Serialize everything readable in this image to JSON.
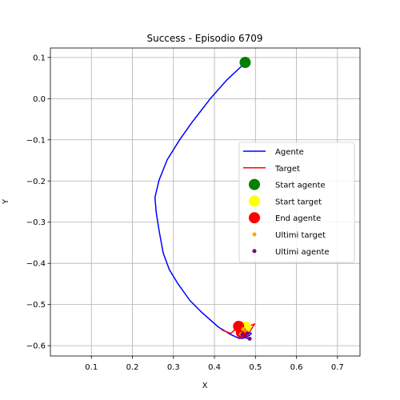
{
  "chart_data": {
    "type": "line",
    "title": "Success - Episodio 6709",
    "xlabel": "X",
    "ylabel": "Y",
    "xlim": [
      0.0,
      0.755
    ],
    "ylim": [
      -0.625,
      0.123
    ],
    "xticks": [
      0.1,
      0.2,
      0.3,
      0.4,
      0.5,
      0.6,
      0.7
    ],
    "yticks": [
      -0.6,
      -0.5,
      -0.4,
      -0.3,
      -0.2,
      -0.1,
      0.0,
      0.1
    ],
    "xtick_labels": [
      "0.1",
      "0.2",
      "0.3",
      "0.4",
      "0.5",
      "0.6",
      "0.7"
    ],
    "ytick_labels": [
      "−0.6",
      "−0.5",
      "−0.4",
      "−0.3",
      "−0.2",
      "−0.1",
      "0.0",
      "0.1"
    ],
    "grid": true,
    "legend_position": "center-right",
    "series": [
      {
        "name": "Agente",
        "kind": "line",
        "color": "#0000ff",
        "points": [
          [
            0.475,
            0.087
          ],
          [
            0.43,
            0.045
          ],
          [
            0.39,
            0.0
          ],
          [
            0.345,
            -0.058
          ],
          [
            0.315,
            -0.1
          ],
          [
            0.285,
            -0.148
          ],
          [
            0.265,
            -0.198
          ],
          [
            0.255,
            -0.24
          ],
          [
            0.258,
            -0.275
          ],
          [
            0.265,
            -0.32
          ],
          [
            0.275,
            -0.375
          ],
          [
            0.29,
            -0.415
          ],
          [
            0.31,
            -0.448
          ],
          [
            0.34,
            -0.49
          ],
          [
            0.37,
            -0.52
          ],
          [
            0.41,
            -0.555
          ],
          [
            0.44,
            -0.573
          ],
          [
            0.46,
            -0.582
          ],
          [
            0.47,
            -0.582
          ],
          [
            0.485,
            -0.575
          ],
          [
            0.49,
            -0.57
          ],
          [
            0.48,
            -0.567
          ],
          [
            0.475,
            -0.575
          ],
          [
            0.468,
            -0.578
          ],
          [
            0.48,
            -0.582
          ],
          [
            0.486,
            -0.58
          ]
        ]
      },
      {
        "name": "Target",
        "kind": "line",
        "color": "#ff0000",
        "points": [
          [
            0.418,
            -0.562
          ],
          [
            0.44,
            -0.57
          ],
          [
            0.455,
            -0.557
          ],
          [
            0.462,
            -0.552
          ],
          [
            0.473,
            -0.563
          ],
          [
            0.483,
            -0.572
          ],
          [
            0.49,
            -0.56
          ],
          [
            0.498,
            -0.547
          ],
          [
            0.485,
            -0.552
          ],
          [
            0.475,
            -0.562
          ],
          [
            0.466,
            -0.572
          ],
          [
            0.46,
            -0.566
          ],
          [
            0.465,
            -0.558
          ],
          [
            0.472,
            -0.572
          ],
          [
            0.478,
            -0.57
          ]
        ]
      },
      {
        "name": "Start agente",
        "kind": "marker",
        "color": "#008000",
        "size": 7,
        "points": [
          [
            0.475,
            0.088
          ]
        ]
      },
      {
        "name": "Start target",
        "kind": "marker",
        "color": "#ffff00",
        "size": 7,
        "points": [
          [
            0.476,
            -0.555
          ]
        ]
      },
      {
        "name": "End agente",
        "kind": "marker",
        "color": "#ff0000",
        "size": 7,
        "points": [
          [
            0.459,
            -0.553
          ],
          [
            0.466,
            -0.568
          ]
        ]
      },
      {
        "name": "Ultimi target",
        "kind": "marker",
        "color": "#ffa500",
        "size": 2.5,
        "points": [
          [
            0.47,
            -0.56
          ],
          [
            0.478,
            -0.566
          ],
          [
            0.465,
            -0.572
          ]
        ]
      },
      {
        "name": "Ultimi agente",
        "kind": "marker",
        "color": "#800080",
        "size": 2.5,
        "points": [
          [
            0.468,
            -0.573
          ],
          [
            0.476,
            -0.578
          ],
          [
            0.486,
            -0.583
          ],
          [
            0.48,
            -0.57
          ]
        ]
      }
    ]
  }
}
